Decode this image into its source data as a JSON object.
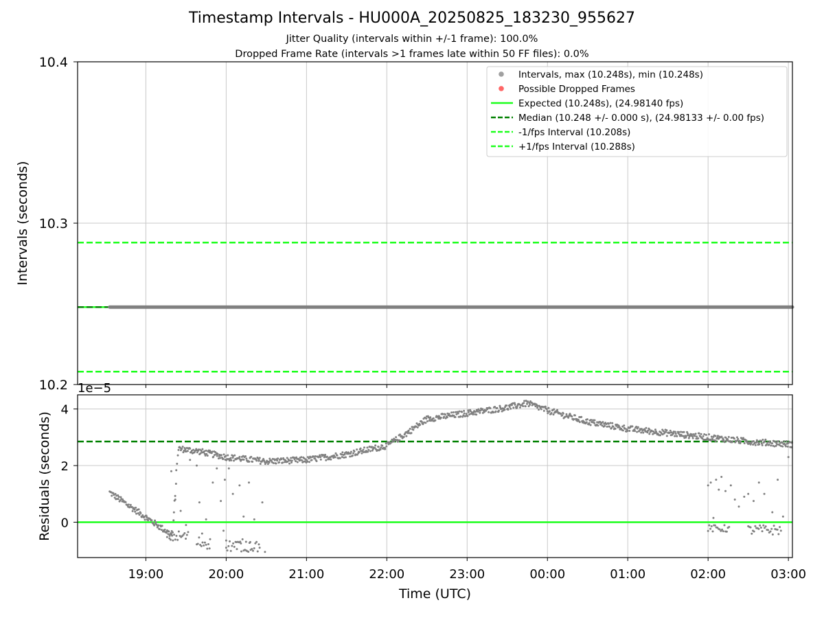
{
  "title": "Timestamp Intervals - HU000A_20250825_183230_955627",
  "subtitle_1": "Jitter Quality (intervals within +/-1 frame): 100.0%",
  "subtitle_2": "Dropped Frame Rate (intervals >1 frames late within 50 FF files): 0.0%",
  "colors": {
    "points": "#808080",
    "dropped": "#ff6666",
    "expected": "#1aff1a",
    "median": "#008000",
    "fps_bounds": "#1aff1a",
    "grid": "#c8c8c8"
  },
  "chart_data": [
    {
      "type": "scatter",
      "ylabel": "Intervals (seconds)",
      "ylim": [
        10.2,
        10.4
      ],
      "yticks": [
        10.2,
        10.3,
        10.4
      ],
      "ytick_labels": [
        "10.2",
        "10.3",
        "10.4"
      ],
      "xlim": [
        "18:09",
        "03:03"
      ],
      "xticks": [
        "19:00",
        "20:00",
        "21:00",
        "22:00",
        "23:00",
        "00:00",
        "01:00",
        "02:00",
        "03:00"
      ],
      "grid": true,
      "legend_position": "top-right",
      "legend": [
        {
          "kind": "marker",
          "color": "#a0a0a0",
          "label": "Intervals, max (10.248s), min (10.248s)"
        },
        {
          "kind": "marker",
          "color": "#ff6666",
          "label": "Possible Dropped Frames"
        },
        {
          "kind": "solid",
          "color": "#1aff1a",
          "label": "Expected (10.248s), (24.98140 fps)"
        },
        {
          "kind": "dashed",
          "color": "#008000",
          "label": "Median (10.248 +/- 0.000 s), (24.98133 +/- 0.00 fps)"
        },
        {
          "kind": "dashed",
          "color": "#1aff1a",
          "label": "-1/fps Interval (10.208s)"
        },
        {
          "kind": "dashed",
          "color": "#1aff1a",
          "label": "+1/fps Interval (10.288s)"
        }
      ],
      "reference_lines": {
        "expected": 10.248,
        "median": 10.248,
        "minus_one_frame": 10.208,
        "plus_one_frame": 10.288
      },
      "series": [
        {
          "name": "Intervals",
          "x_start": "18:33",
          "x_end": "03:03",
          "value": 10.248
        }
      ]
    },
    {
      "type": "scatter",
      "ylabel": "Residuals (seconds)",
      "offset_label": "1e−5",
      "ylim": [
        -1.25,
        4.5
      ],
      "yticks": [
        0,
        2,
        4
      ],
      "ytick_labels": [
        "0",
        "2",
        "4"
      ],
      "xlabel": "Time (UTC)",
      "xlim": [
        "18:09",
        "03:03"
      ],
      "xticks": [
        "19:00",
        "20:00",
        "21:00",
        "22:00",
        "23:00",
        "00:00",
        "01:00",
        "02:00",
        "03:00"
      ],
      "xtick_labels": [
        "19:00",
        "20:00",
        "21:00",
        "22:00",
        "23:00",
        "00:00",
        "01:00",
        "02:00",
        "03:00"
      ],
      "grid": true,
      "reference_lines": {
        "expected": 0,
        "median": 2.85
      },
      "residual_trend": [
        {
          "t": "18:33",
          "y": 1.05
        },
        {
          "t": "18:45",
          "y": 0.7
        },
        {
          "t": "19:00",
          "y": 0.15
        },
        {
          "t": "19:10",
          "y": -0.15
        },
        {
          "t": "19:20",
          "y": -0.45
        },
        {
          "t": "19:24",
          "y": 2.6
        },
        {
          "t": "19:40",
          "y": 2.5
        },
        {
          "t": "20:00",
          "y": 2.3
        },
        {
          "t": "20:30",
          "y": 2.15
        },
        {
          "t": "21:00",
          "y": 2.2
        },
        {
          "t": "21:30",
          "y": 2.4
        },
        {
          "t": "22:00",
          "y": 2.7
        },
        {
          "t": "22:15",
          "y": 3.15
        },
        {
          "t": "22:30",
          "y": 3.65
        },
        {
          "t": "23:00",
          "y": 3.85
        },
        {
          "t": "23:30",
          "y": 4.05
        },
        {
          "t": "23:45",
          "y": 4.2
        },
        {
          "t": "00:00",
          "y": 3.95
        },
        {
          "t": "00:30",
          "y": 3.55
        },
        {
          "t": "01:00",
          "y": 3.3
        },
        {
          "t": "01:30",
          "y": 3.15
        },
        {
          "t": "02:00",
          "y": 3.0
        },
        {
          "t": "02:30",
          "y": 2.85
        },
        {
          "t": "03:03",
          "y": 2.75
        }
      ],
      "scattered_points": [
        {
          "t": "19:19",
          "y": 1.8
        },
        {
          "t": "19:22",
          "y": 0.8
        },
        {
          "t": "19:26",
          "y": 0.4
        },
        {
          "t": "19:30",
          "y": -0.1
        },
        {
          "t": "19:33",
          "y": 2.2
        },
        {
          "t": "19:38",
          "y": 2.0
        },
        {
          "t": "19:40",
          "y": 0.7
        },
        {
          "t": "19:42",
          "y": -0.4
        },
        {
          "t": "19:45",
          "y": 0.1
        },
        {
          "t": "19:48",
          "y": -0.6
        },
        {
          "t": "19:50",
          "y": 1.4
        },
        {
          "t": "19:53",
          "y": 1.9
        },
        {
          "t": "19:56",
          "y": 0.75
        },
        {
          "t": "19:58",
          "y": -0.3
        },
        {
          "t": "19:59",
          "y": 1.5
        },
        {
          "t": "20:00",
          "y": -0.9
        },
        {
          "t": "20:02",
          "y": 1.9
        },
        {
          "t": "20:05",
          "y": 1.0
        },
        {
          "t": "20:08",
          "y": -0.95
        },
        {
          "t": "20:10",
          "y": 1.3
        },
        {
          "t": "20:11",
          "y": -0.75
        },
        {
          "t": "20:13",
          "y": 0.2
        },
        {
          "t": "20:15",
          "y": -1.0
        },
        {
          "t": "20:17",
          "y": 1.4
        },
        {
          "t": "20:18",
          "y": -0.7
        },
        {
          "t": "20:21",
          "y": 0.1
        },
        {
          "t": "20:25",
          "y": -0.9
        },
        {
          "t": "20:27",
          "y": 0.7
        },
        {
          "t": "20:29",
          "y": -1.05
        },
        {
          "t": "02:00",
          "y": 1.3
        },
        {
          "t": "02:02",
          "y": 1.4
        },
        {
          "t": "02:04",
          "y": 0.15
        },
        {
          "t": "02:06",
          "y": 1.5
        },
        {
          "t": "02:08",
          "y": 1.15
        },
        {
          "t": "02:10",
          "y": 1.6
        },
        {
          "t": "02:13",
          "y": 1.1
        },
        {
          "t": "02:17",
          "y": 1.3
        },
        {
          "t": "02:20",
          "y": 0.8
        },
        {
          "t": "02:23",
          "y": 0.55
        },
        {
          "t": "02:27",
          "y": 0.9
        },
        {
          "t": "02:30",
          "y": 1.0
        },
        {
          "t": "02:34",
          "y": 0.75
        },
        {
          "t": "02:38",
          "y": 1.4
        },
        {
          "t": "02:42",
          "y": 1.0
        },
        {
          "t": "02:48",
          "y": 0.35
        },
        {
          "t": "02:52",
          "y": 1.5
        },
        {
          "t": "02:56",
          "y": 0.2
        },
        {
          "t": "03:00",
          "y": 2.3
        }
      ],
      "low_clusters": [
        {
          "t_start": "19:15",
          "t_end": "19:32",
          "y_min": -0.7,
          "y_max": -0.3
        },
        {
          "t_start": "19:38",
          "t_end": "19:48",
          "y_min": -0.95,
          "y_max": -0.5
        },
        {
          "t_start": "20:00",
          "t_end": "20:25",
          "y_min": -1.05,
          "y_max": -0.6
        },
        {
          "t_start": "02:00",
          "t_end": "02:16",
          "y_min": -0.35,
          "y_max": -0.1
        },
        {
          "t_start": "02:30",
          "t_end": "02:55",
          "y_min": -0.45,
          "y_max": -0.1
        }
      ]
    }
  ]
}
